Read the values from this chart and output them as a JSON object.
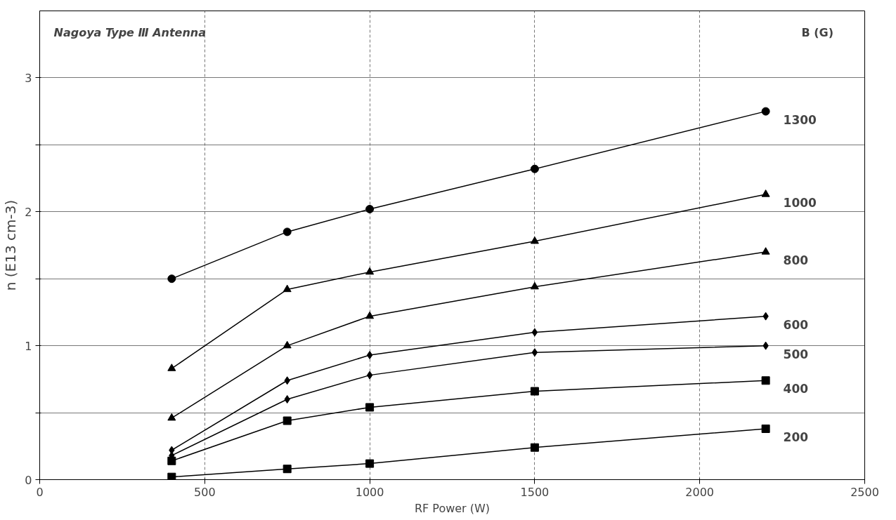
{
  "chart_data": {
    "type": "line",
    "xlabel": "RF Power (W)",
    "ylabel": "n (E13 cm-3)",
    "legend_title": "B (G)",
    "annotations": [
      "Nagoya Type Ⅲ Antenna"
    ],
    "x": [
      400,
      750,
      1000,
      1500,
      2200
    ],
    "xlim": [
      0,
      2500
    ],
    "xticks": [
      0,
      500,
      1000,
      1500,
      2000,
      2500
    ],
    "ylim": [
      0,
      3.5
    ],
    "yticks": [
      0,
      {
        "value": 0.5,
        "label": null
      },
      1,
      {
        "value": 1.5,
        "label": null
      },
      2,
      {
        "value": 2.5,
        "label": null
      },
      3
    ],
    "grid": true,
    "series": [
      {
        "name": "1300",
        "color": "#000000",
        "marker": "circle",
        "values": [
          1.5,
          1.85,
          2.02,
          2.32,
          2.75
        ]
      },
      {
        "name": "1000",
        "color": "#000000",
        "marker": "triangle",
        "values": [
          0.83,
          1.42,
          1.55,
          1.78,
          2.13
        ]
      },
      {
        "name": "800",
        "color": "#000000",
        "marker": "triangle",
        "values": [
          0.46,
          1.0,
          1.22,
          1.44,
          1.7
        ]
      },
      {
        "name": "600",
        "color": "#000000",
        "marker": "diamond",
        "values": [
          0.22,
          0.74,
          0.93,
          1.1,
          1.22
        ]
      },
      {
        "name": "500",
        "color": "#000000",
        "marker": "diamond",
        "values": [
          0.18,
          0.6,
          0.78,
          0.95,
          1.0
        ]
      },
      {
        "name": "400",
        "color": "#000000",
        "marker": "square",
        "values": [
          0.14,
          0.44,
          0.54,
          0.66,
          0.74
        ]
      },
      {
        "name": "200",
        "color": "#000000",
        "marker": "square",
        "values": [
          0.02,
          0.08,
          0.12,
          0.24,
          0.38
        ]
      }
    ]
  }
}
